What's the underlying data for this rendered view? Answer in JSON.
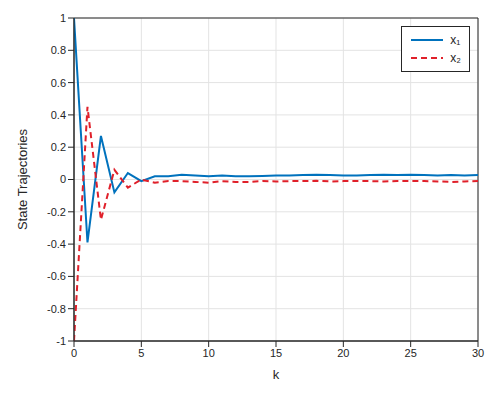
{
  "chart_data": {
    "type": "line",
    "x_label": "k",
    "y_label": "State Trajectories",
    "x": [
      0,
      1,
      2,
      3,
      4,
      5,
      6,
      7,
      8,
      9,
      10,
      11,
      12,
      13,
      14,
      15,
      16,
      17,
      18,
      19,
      20,
      21,
      22,
      23,
      24,
      25,
      26,
      27,
      28,
      29,
      30
    ],
    "series": [
      {
        "name": "x₁",
        "color": "#0072bd",
        "line_style": "solid",
        "marker": "none",
        "values": [
          1,
          -0.39,
          0.27,
          -0.08,
          0.04,
          -0.01,
          0.02,
          0.02,
          0.03,
          0.025,
          0.02,
          0.025,
          0.02,
          0.02,
          0.022,
          0.025,
          0.025,
          0.028,
          0.03,
          0.028,
          0.025,
          0.025,
          0.028,
          0.03,
          0.028,
          0.03,
          0.028,
          0.025,
          0.028,
          0.025,
          0.028
        ]
      },
      {
        "name": "x₂",
        "color": "#e0202a",
        "line_style": "dashed",
        "marker": "none",
        "values": [
          -1,
          0.45,
          -0.25,
          0.06,
          -0.05,
          0,
          -0.02,
          -0.01,
          -0.01,
          -0.015,
          -0.02,
          -0.01,
          -0.015,
          -0.015,
          -0.01,
          -0.012,
          -0.01,
          -0.01,
          -0.008,
          -0.012,
          -0.01,
          -0.01,
          -0.01,
          -0.012,
          -0.01,
          -0.01,
          -0.01,
          -0.012,
          -0.015,
          -0.012,
          -0.01
        ]
      }
    ],
    "xlim": [
      0,
      30
    ],
    "xticks": [
      0,
      5,
      10,
      15,
      20,
      25,
      30
    ],
    "ylim": [
      -1,
      1
    ],
    "yticks": [
      -1,
      -0.8,
      -0.6,
      -0.4,
      -0.2,
      0,
      0.2,
      0.4,
      0.6,
      0.8,
      1
    ],
    "grid": true,
    "legend": "upper right"
  }
}
